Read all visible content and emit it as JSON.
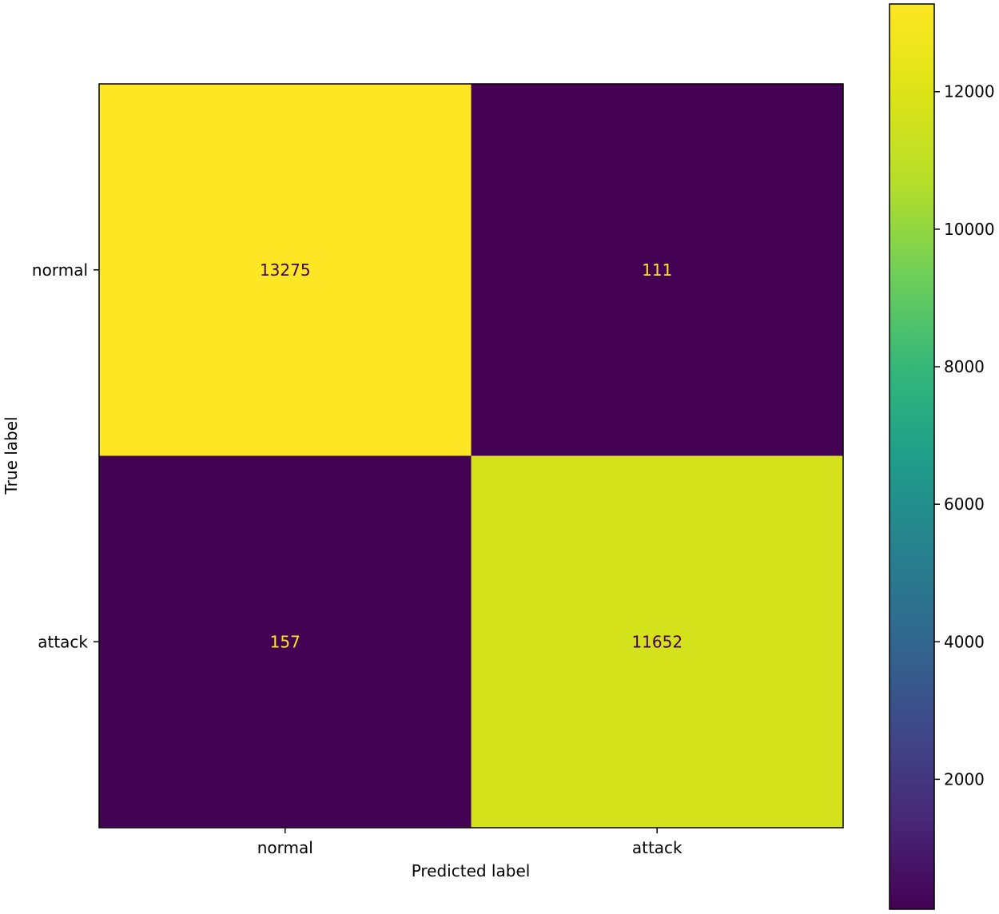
{
  "chart_data": {
    "type": "heatmap",
    "title": "",
    "xlabel": "Predicted label",
    "ylabel": "True label",
    "x_categories": [
      "normal",
      "attack"
    ],
    "y_categories": [
      "normal",
      "attack"
    ],
    "values": [
      [
        13275,
        111
      ],
      [
        157,
        11652
      ]
    ],
    "cell_labels": [
      [
        "13275",
        "111"
      ],
      [
        "157",
        "11652"
      ]
    ],
    "colormap": "viridis",
    "colorbar": {
      "vmin": 111,
      "vmax": 13275,
      "ticks": [
        2000,
        4000,
        6000,
        8000,
        10000,
        12000
      ],
      "tick_labels": [
        "2000",
        "4000",
        "6000",
        "8000",
        "10000",
        "12000"
      ]
    },
    "text_color_dark_cells": "#fde725",
    "text_color_light_cells": "#440154"
  }
}
